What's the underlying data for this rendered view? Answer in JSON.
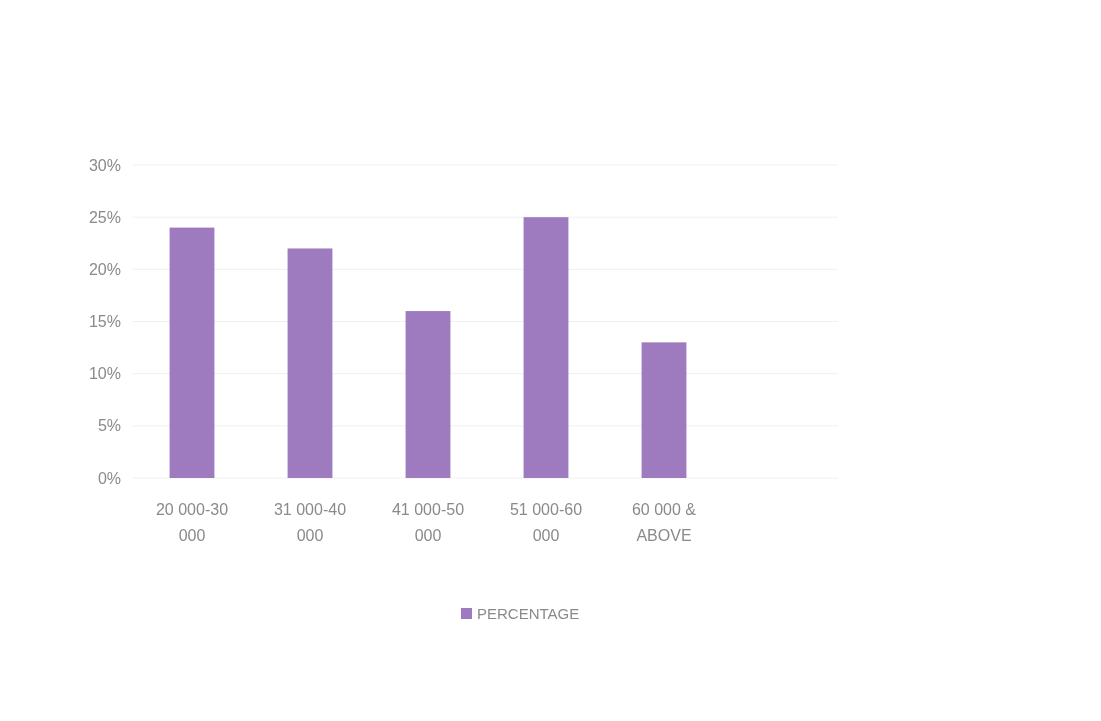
{
  "chart_data": {
    "type": "bar",
    "categories": [
      "20 000-30 000",
      "31 000-40 000",
      "41 000-50 000",
      "51 000-60 000",
      "60 000 & ABOVE"
    ],
    "series": [
      {
        "name": "PERCENTAGE",
        "color": "#9e7bbf",
        "values": [
          24,
          22,
          16,
          25,
          13
        ]
      }
    ],
    "ylim": [
      0,
      30
    ],
    "yticks": [
      {
        "value": 0,
        "label": "0%"
      },
      {
        "value": 5,
        "label": "5%"
      },
      {
        "value": 10,
        "label": "10%"
      },
      {
        "value": 15,
        "label": "15%"
      },
      {
        "value": 20,
        "label": "20%"
      },
      {
        "value": 25,
        "label": "25%"
      },
      {
        "value": 30,
        "label": "30%"
      }
    ],
    "grid": "y",
    "legend": "bottom"
  }
}
